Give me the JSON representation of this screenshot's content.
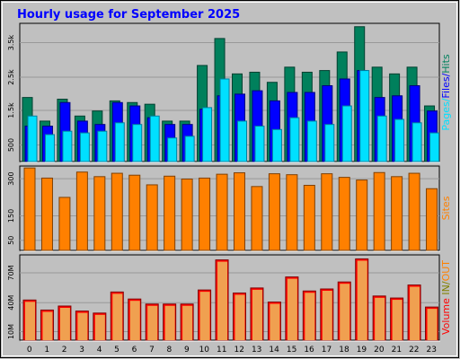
{
  "title": "Hourly usage for September 2025",
  "colors": {
    "background": "#C0C0C0",
    "plot_bg": "#C0C0C0",
    "title": "#0000FF",
    "hits": "#00805C",
    "files": "#0000FF",
    "pages": "#00E0FF",
    "sites": "#FF8000",
    "volume": "#FF0000",
    "volume_fill": "#F0A050"
  },
  "chart_data": [
    {
      "type": "bar",
      "panel": "hits-files-pages",
      "categories": [
        "0",
        "1",
        "2",
        "3",
        "4",
        "5",
        "6",
        "7",
        "8",
        "9",
        "10",
        "11",
        "12",
        "13",
        "14",
        "15",
        "16",
        "17",
        "18",
        "19",
        "20",
        "21",
        "22",
        "23"
      ],
      "series": [
        {
          "name": "Hits",
          "values": [
            1900,
            1200,
            1850,
            1350,
            1500,
            1800,
            1750,
            1700,
            1200,
            1200,
            2850,
            3650,
            2600,
            2650,
            2350,
            2800,
            2650,
            2700,
            3250,
            4000,
            2800,
            2600,
            2800,
            1650
          ]
        },
        {
          "name": "Files",
          "values": [
            1050,
            1050,
            1750,
            1200,
            1100,
            1750,
            1650,
            1300,
            1100,
            1100,
            1550,
            1950,
            2000,
            2100,
            1800,
            2050,
            2050,
            2250,
            2450,
            2700,
            1900,
            1950,
            2250,
            1500
          ]
        },
        {
          "name": "Pages",
          "values": [
            1350,
            800,
            900,
            850,
            900,
            1150,
            1100,
            1350,
            700,
            750,
            1600,
            2450,
            1200,
            1050,
            950,
            1300,
            1200,
            1100,
            1650,
            2700,
            1350,
            1250,
            1150,
            850
          ]
        }
      ],
      "ylabel_parts": [
        "Pages",
        "Files",
        "Hits"
      ],
      "yticks": [
        "500",
        "1.5k",
        "2.5k",
        "3.5k"
      ],
      "ylim": [
        0,
        4100
      ]
    },
    {
      "type": "bar",
      "panel": "sites",
      "categories": [
        "0",
        "1",
        "2",
        "3",
        "4",
        "5",
        "6",
        "7",
        "8",
        "9",
        "10",
        "11",
        "12",
        "13",
        "14",
        "15",
        "16",
        "17",
        "18",
        "19",
        "20",
        "21",
        "22",
        "23"
      ],
      "series": [
        {
          "name": "Sites",
          "values": [
            342,
            300,
            220,
            325,
            306,
            320,
            312,
            272,
            308,
            296,
            300,
            316,
            322,
            265,
            318,
            314,
            270,
            318,
            303,
            292,
            323,
            306,
            320,
            256
          ]
        }
      ],
      "ylabel": "Sites",
      "yticks": [
        "50",
        "150",
        "300"
      ],
      "ylim": [
        0,
        350
      ]
    },
    {
      "type": "bar",
      "panel": "volume",
      "categories": [
        "0",
        "1",
        "2",
        "3",
        "4",
        "5",
        "6",
        "7",
        "8",
        "9",
        "10",
        "11",
        "12",
        "13",
        "14",
        "15",
        "16",
        "17",
        "18",
        "19",
        "20",
        "21",
        "22",
        "23"
      ],
      "series": [
        {
          "name": "Volume",
          "values": [
            40,
            30,
            34,
            29,
            27,
            48,
            41,
            36,
            36,
            36,
            50,
            80,
            47,
            52,
            38,
            63,
            49,
            51,
            58,
            81,
            44,
            42,
            55,
            33
          ]
        }
      ],
      "ylabel_parts": [
        "Volume",
        "IN",
        "OUT"
      ],
      "yticks": [
        "10M",
        "40M",
        "70M"
      ],
      "ylim": [
        0,
        85
      ]
    }
  ]
}
